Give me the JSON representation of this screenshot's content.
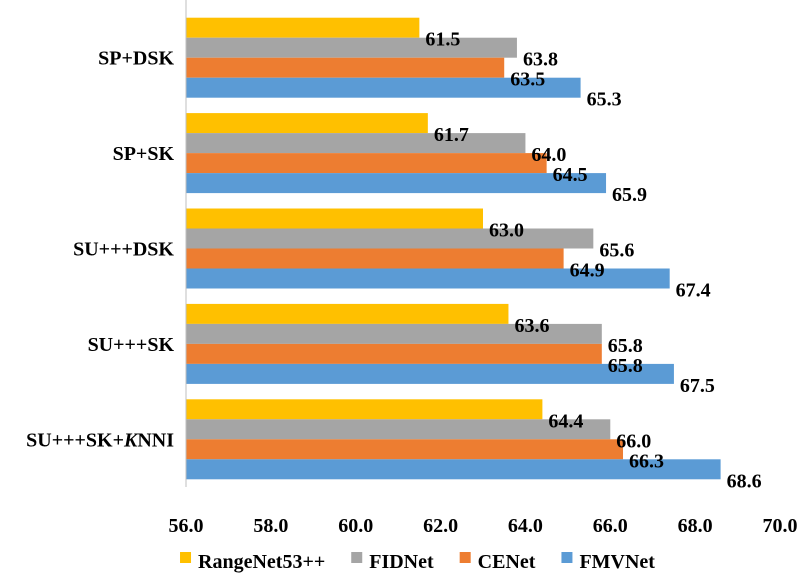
{
  "chart_data": {
    "type": "bar",
    "orientation": "horizontal",
    "categories": [
      "SP+DSK",
      "SP+SK",
      "SU+++DSK",
      "SU+++SK",
      "SU+++SK+KNNI"
    ],
    "category_parts": [
      {
        "prefix": "SP+DSK",
        "italic": "",
        "suffix": ""
      },
      {
        "prefix": "SP+SK",
        "italic": "",
        "suffix": ""
      },
      {
        "prefix": "SU+++DSK",
        "italic": "",
        "suffix": ""
      },
      {
        "prefix": "SU+++SK",
        "italic": "",
        "suffix": ""
      },
      {
        "prefix": "SU+++SK+",
        "italic": "K",
        "suffix": "NNI"
      }
    ],
    "series": [
      {
        "name": "RangeNet53++",
        "color": "#FFC000",
        "values": [
          61.5,
          61.7,
          63.0,
          63.6,
          64.4
        ],
        "labels": [
          "61.5",
          "61.7",
          "63.0",
          "63.6",
          "64.4"
        ]
      },
      {
        "name": "FIDNet",
        "color": "#A5A5A5",
        "values": [
          63.8,
          64.0,
          65.6,
          65.8,
          66.0
        ],
        "labels": [
          "63.8",
          "64.0",
          "65.6",
          "65.8",
          "66.0"
        ]
      },
      {
        "name": "CENet",
        "color": "#ED7D31",
        "values": [
          63.5,
          64.5,
          64.9,
          65.8,
          66.3
        ],
        "labels": [
          "63.5",
          "64.5",
          "64.9",
          "65.8",
          "66.3"
        ]
      },
      {
        "name": "FMVNet",
        "color": "#5B9BD5",
        "values": [
          65.3,
          65.9,
          67.4,
          67.5,
          68.6
        ],
        "labels": [
          "65.3",
          "65.9",
          "67.4",
          "67.5",
          "68.6"
        ]
      }
    ],
    "xlim": [
      56.0,
      70.0
    ],
    "xticks": [
      "56.0",
      "58.0",
      "60.0",
      "62.0",
      "64.0",
      "66.0",
      "68.0",
      "70.0"
    ],
    "legend_position": "bottom",
    "grid": false,
    "title": "",
    "xlabel": "",
    "ylabel": ""
  }
}
